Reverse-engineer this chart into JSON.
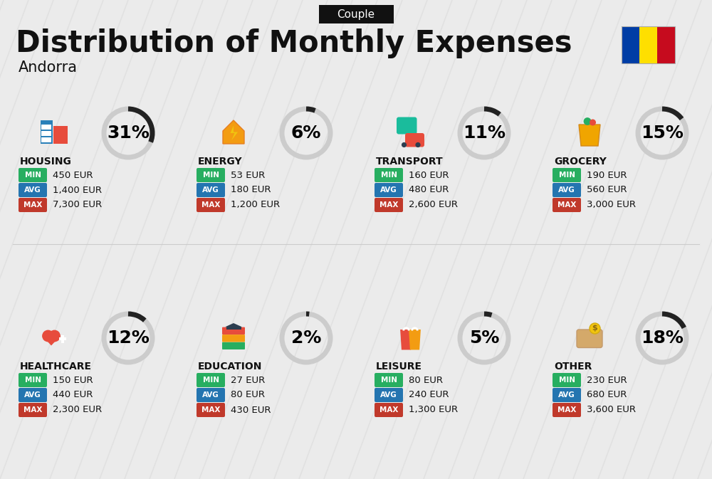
{
  "title": "Distribution of Monthly Expenses",
  "subtitle": "Andorra",
  "badge": "Couple",
  "bg_color": "#ebebeb",
  "categories": [
    {
      "name": "HOUSING",
      "pct": 31,
      "min": "450 EUR",
      "avg": "1,400 EUR",
      "max": "7,300 EUR",
      "row": 0,
      "col": 0
    },
    {
      "name": "ENERGY",
      "pct": 6,
      "min": "53 EUR",
      "avg": "180 EUR",
      "max": "1,200 EUR",
      "row": 0,
      "col": 1
    },
    {
      "name": "TRANSPORT",
      "pct": 11,
      "min": "160 EUR",
      "avg": "480 EUR",
      "max": "2,600 EUR",
      "row": 0,
      "col": 2
    },
    {
      "name": "GROCERY",
      "pct": 15,
      "min": "190 EUR",
      "avg": "560 EUR",
      "max": "3,000 EUR",
      "row": 0,
      "col": 3
    },
    {
      "name": "HEALTHCARE",
      "pct": 12,
      "min": "150 EUR",
      "avg": "440 EUR",
      "max": "2,300 EUR",
      "row": 1,
      "col": 0
    },
    {
      "name": "EDUCATION",
      "pct": 2,
      "min": "27 EUR",
      "avg": "80 EUR",
      "max": "430 EUR",
      "row": 1,
      "col": 1
    },
    {
      "name": "LEISURE",
      "pct": 5,
      "min": "80 EUR",
      "avg": "240 EUR",
      "max": "1,300 EUR",
      "row": 1,
      "col": 2
    },
    {
      "name": "OTHER",
      "pct": 18,
      "min": "230 EUR",
      "avg": "680 EUR",
      "max": "3,600 EUR",
      "row": 1,
      "col": 3
    }
  ],
  "min_color": "#27ae60",
  "avg_color": "#2475b0",
  "max_color": "#c0392b",
  "badge_bg": "#111111",
  "badge_fg": "#ffffff",
  "flag_colors": [
    "#003DA5",
    "#FEDF00",
    "#C60B1E"
  ],
  "donut_fg": "#222222",
  "donut_bg": "#cccccc",
  "stripe_color": "#d8d8d8",
  "title_fontsize": 30,
  "subtitle_fontsize": 15,
  "badge_fontsize": 11,
  "pct_fontsize": 18,
  "name_fontsize": 10,
  "value_fontsize": 9.5,
  "badge_label_fontsize": 7.5
}
